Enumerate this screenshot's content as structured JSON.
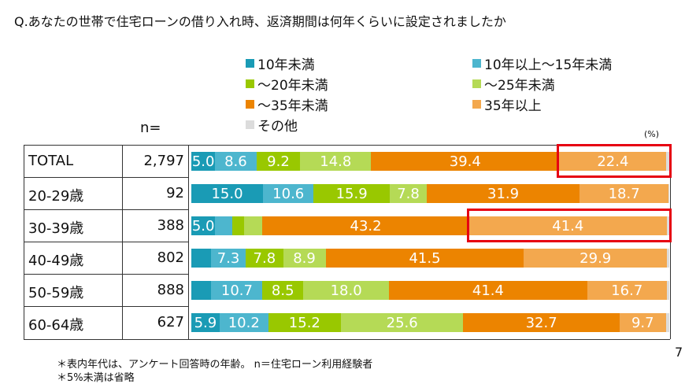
{
  "title": "Q.あなたの世帯で住宅ローンの借り入れ時、返済期間は何年くらいに設定されましたか",
  "n_header": "n=",
  "unit": "(%)",
  "page_number": "7",
  "notes": [
    "＊表内年代は、アンケート回答時の年齢。 n＝住宅ローン利用経験者",
    "＊5%未満は省略"
  ],
  "chart_data": {
    "type": "bar",
    "orientation": "horizontal",
    "stacked": true,
    "xlim": [
      0,
      100
    ],
    "legend_placement": "top",
    "categories": [
      "TOTAL",
      "20-29歳",
      "30-39歳",
      "40-49歳",
      "50-59歳",
      "60-64歳"
    ],
    "n": [
      "2,797",
      "92",
      "388",
      "802",
      "888",
      "627"
    ],
    "series": [
      {
        "name": "10年未満",
        "color": "#1a9bb5",
        "values": [
          5.0,
          15.0,
          5.0,
          4.1,
          4.2,
          5.9
        ]
      },
      {
        "name": "10年以上～15年未満",
        "color": "#4db6ce",
        "values": [
          8.6,
          10.6,
          3.6,
          7.3,
          10.7,
          10.2
        ]
      },
      {
        "name": "～20年未満",
        "color": "#99c800",
        "values": [
          9.2,
          15.9,
          2.5,
          7.8,
          8.5,
          15.2
        ]
      },
      {
        "name": "～25年未満",
        "color": "#b5da56",
        "values": [
          14.8,
          7.8,
          3.8,
          8.9,
          18.0,
          25.6
        ]
      },
      {
        "name": "～35年未満",
        "color": "#ec8400",
        "values": [
          39.4,
          31.9,
          43.2,
          41.5,
          41.4,
          32.7
        ]
      },
      {
        "name": "35年以上",
        "color": "#f3a84e",
        "values": [
          22.4,
          18.7,
          41.4,
          29.9,
          16.7,
          9.7
        ]
      },
      {
        "name": "その他",
        "color": "#dcdcdc",
        "values": [
          0.6,
          0.1,
          0.5,
          0.5,
          0.5,
          0.7
        ]
      }
    ],
    "label_threshold": 5,
    "highlighted": [
      {
        "category": "TOTAL",
        "series": "35年以上"
      },
      {
        "category": "30-39歳",
        "series": "35年以上"
      }
    ]
  }
}
